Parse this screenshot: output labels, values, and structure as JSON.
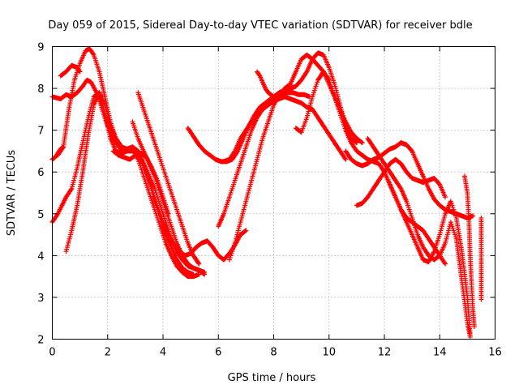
{
  "chart_data": {
    "type": "scatter",
    "title": "Day 059 of 2015, Sidereal Day-to-day VTEC variation (SDTVAR) for receiver bdle",
    "xlabel": "GPS time / hours",
    "ylabel": "SDTVAR / TECUs",
    "xlim": [
      0,
      16
    ],
    "ylim": [
      2,
      9
    ],
    "xticks": [
      "0",
      "2",
      "4",
      "6",
      "8",
      "10",
      "12",
      "14",
      "16"
    ],
    "yticks": [
      "2",
      "3",
      "4",
      "5",
      "6",
      "7",
      "8",
      "9"
    ],
    "grid": true,
    "marker": "plus",
    "color": "#ff0000",
    "series": [
      {
        "x": [
          0.0,
          0.2,
          0.35,
          0.5,
          0.7,
          0.9,
          1.1,
          1.3,
          1.5,
          1.7,
          1.9,
          2.1,
          2.3,
          2.5,
          2.7,
          2.9,
          3.1,
          3.3,
          3.5,
          3.7,
          3.9,
          4.1,
          4.3,
          4.5,
          4.7,
          4.9,
          5.1,
          5.3,
          5.5
        ],
        "y": [
          4.8,
          5.0,
          5.2,
          5.4,
          5.6,
          6.1,
          6.7,
          7.3,
          7.8,
          7.9,
          7.6,
          7.1,
          6.8,
          6.6,
          6.55,
          6.6,
          6.5,
          6.2,
          5.9,
          5.6,
          5.2,
          4.8,
          4.4,
          4.1,
          3.9,
          3.75,
          3.7,
          3.65,
          3.55
        ]
      },
      {
        "x": [
          0.5,
          0.7,
          0.9,
          1.1,
          1.3,
          1.5,
          1.7,
          1.9,
          2.1,
          2.3,
          2.5,
          2.7,
          2.9,
          3.1,
          3.3,
          3.5,
          3.7,
          3.9,
          4.1,
          4.3,
          4.5,
          4.7,
          4.9,
          5.1,
          5.3
        ],
        "y": [
          4.1,
          4.6,
          5.2,
          6.0,
          6.9,
          7.6,
          7.9,
          7.4,
          6.8,
          6.5,
          6.45,
          6.5,
          6.55,
          6.3,
          5.9,
          5.5,
          5.1,
          4.7,
          4.3,
          4.0,
          3.75,
          3.6,
          3.5,
          3.5,
          3.55
        ]
      },
      {
        "x": [
          0.2,
          0.4,
          0.6,
          0.8,
          1.0,
          1.2,
          1.35,
          1.5,
          1.7,
          1.9,
          2.1,
          2.3,
          2.5,
          2.7,
          2.9,
          3.1,
          3.3,
          3.5,
          3.7,
          3.9,
          4.1,
          4.3,
          4.5,
          4.7,
          4.9,
          5.1
        ],
        "y": [
          6.4,
          6.6,
          7.5,
          8.2,
          8.6,
          8.9,
          8.95,
          8.8,
          8.4,
          7.8,
          7.2,
          6.8,
          6.6,
          6.5,
          6.5,
          6.45,
          6.2,
          5.8,
          5.3,
          4.9,
          4.5,
          4.2,
          3.9,
          3.7,
          3.6,
          3.55
        ]
      },
      {
        "x": [
          0.0,
          0.3,
          0.5,
          0.7,
          0.9,
          1.1,
          1.25,
          1.4,
          1.6,
          1.8,
          2.0,
          2.2,
          2.4,
          2.6,
          2.8,
          3.0,
          3.2,
          3.4,
          3.6,
          3.8,
          4.0,
          4.2,
          4.4,
          4.6,
          4.8,
          5.0,
          5.2,
          5.4,
          5.6,
          5.8,
          6.0,
          6.2,
          6.4,
          6.6,
          6.8,
          7.0
        ],
        "y": [
          7.8,
          7.75,
          7.85,
          7.8,
          7.9,
          8.05,
          8.2,
          8.15,
          7.9,
          7.5,
          7.1,
          6.8,
          6.6,
          6.5,
          6.55,
          6.5,
          6.3,
          6.0,
          5.6,
          5.2,
          4.8,
          4.5,
          4.25,
          4.1,
          4.0,
          4.05,
          4.2,
          4.3,
          4.35,
          4.2,
          4.0,
          3.9,
          4.05,
          4.25,
          4.5,
          4.6
        ]
      },
      {
        "x": [
          0.0,
          0.1,
          0.2,
          0.3,
          0.4
        ],
        "y": [
          6.3,
          6.35,
          6.45,
          6.55,
          6.6
        ]
      },
      {
        "x": [
          0.3,
          0.5,
          0.7,
          0.9,
          1.0
        ],
        "y": [
          8.3,
          8.4,
          8.55,
          8.5,
          8.4
        ]
      },
      {
        "x": [
          2.9,
          3.1,
          3.3,
          3.5,
          3.7,
          3.9,
          4.1,
          4.3,
          4.5,
          4.7,
          4.9,
          5.1,
          5.3,
          5.5
        ],
        "y": [
          7.2,
          6.8,
          6.5,
          6.2,
          5.9,
          5.5,
          5.1,
          4.7,
          4.3,
          4.0,
          3.8,
          3.7,
          3.65,
          3.6
        ]
      },
      {
        "x": [
          2.2,
          2.4,
          2.6,
          2.8,
          3.0,
          3.2,
          3.4,
          3.6,
          3.8,
          4.0,
          4.2
        ],
        "y": [
          6.5,
          6.4,
          6.35,
          6.3,
          6.4,
          6.45,
          6.35,
          6.1,
          5.8,
          5.4,
          5.0
        ]
      },
      {
        "x": [
          3.1,
          3.3,
          3.5,
          3.7,
          3.9,
          4.1,
          4.3,
          4.5,
          4.7,
          4.9,
          5.1,
          5.3
        ],
        "y": [
          7.9,
          7.5,
          7.1,
          6.7,
          6.3,
          5.9,
          5.5,
          5.1,
          4.7,
          4.3,
          4.0,
          3.8
        ]
      },
      {
        "x": [
          4.9,
          5.1,
          5.3,
          5.5,
          5.7,
          5.9,
          6.1,
          6.3,
          6.5,
          6.7,
          6.9,
          7.1,
          7.3,
          7.5,
          7.7,
          7.9,
          8.1,
          8.3,
          8.5,
          8.7,
          8.9,
          9.1,
          9.3
        ],
        "y": [
          7.05,
          6.85,
          6.65,
          6.5,
          6.4,
          6.3,
          6.25,
          6.25,
          6.3,
          6.5,
          6.8,
          7.1,
          7.35,
          7.55,
          7.65,
          7.75,
          7.8,
          7.85,
          7.9,
          7.9,
          7.85,
          7.85,
          7.8
        ]
      },
      {
        "x": [
          6.0,
          6.2,
          6.4,
          6.6,
          6.8,
          7.0,
          7.2,
          7.4,
          7.6,
          7.8,
          8.0,
          8.2,
          8.4,
          8.6,
          8.8,
          9.0,
          9.2,
          9.4,
          9.6,
          9.8,
          10.0,
          10.2,
          10.4,
          10.6
        ],
        "y": [
          4.7,
          5.0,
          5.4,
          5.8,
          6.2,
          6.6,
          7.0,
          7.3,
          7.5,
          7.6,
          7.7,
          7.75,
          7.8,
          7.75,
          7.7,
          7.65,
          7.55,
          7.5,
          7.3,
          7.1,
          6.9,
          6.7,
          6.5,
          6.3
        ]
      },
      {
        "x": [
          6.4,
          6.6,
          6.8,
          7.0,
          7.2,
          7.4,
          7.6,
          7.8,
          8.0,
          8.2,
          8.4,
          8.6,
          8.8,
          9.0,
          9.2,
          9.4,
          9.6,
          9.8,
          10.0,
          10.2,
          10.4,
          10.6,
          10.8,
          11.0,
          11.2
        ],
        "y": [
          3.9,
          4.3,
          4.8,
          5.3,
          5.8,
          6.3,
          6.8,
          7.2,
          7.6,
          7.85,
          8.0,
          8.1,
          8.4,
          8.7,
          8.8,
          8.7,
          8.55,
          8.4,
          8.1,
          7.8,
          7.5,
          7.2,
          6.95,
          6.8,
          6.7
        ]
      },
      {
        "x": [
          6.2,
          6.4,
          6.6,
          6.8,
          7.0,
          7.2,
          7.4,
          7.6,
          7.8,
          8.0,
          8.2,
          8.4,
          8.6,
          8.8,
          9.0,
          9.2,
          9.4,
          9.6,
          9.8,
          10.0,
          10.2,
          10.4,
          10.6,
          10.8,
          11.0
        ],
        "y": [
          6.25,
          6.3,
          6.5,
          6.8,
          7.0,
          7.2,
          7.4,
          7.55,
          7.7,
          7.8,
          7.9,
          7.95,
          8.0,
          8.05,
          8.2,
          8.4,
          8.7,
          8.85,
          8.8,
          8.5,
          8.1,
          7.6,
          7.1,
          6.8,
          6.7
        ]
      },
      {
        "x": [
          7.4,
          7.5,
          7.6,
          7.7,
          7.8,
          7.9,
          8.0
        ],
        "y": [
          8.4,
          8.3,
          8.15,
          8.0,
          7.9,
          7.85,
          7.8
        ]
      },
      {
        "x": [
          8.8,
          9.0,
          9.2,
          9.4,
          9.6,
          9.8,
          10.0,
          10.2,
          10.4,
          10.6,
          10.8,
          11.0,
          11.2,
          11.4,
          11.6,
          11.8,
          12.0,
          12.2,
          12.4,
          12.6,
          12.8,
          13.0,
          13.2,
          13.4,
          13.6,
          13.8,
          14.0,
          14.2
        ],
        "y": [
          7.05,
          6.95,
          7.3,
          7.8,
          8.2,
          8.4,
          8.2,
          7.8,
          7.4,
          7.0,
          6.7,
          6.5,
          6.4,
          6.3,
          6.25,
          6.2,
          6.0,
          5.7,
          5.4,
          5.1,
          4.9,
          4.8,
          4.7,
          4.6,
          4.4,
          4.2,
          4.0,
          3.8
        ]
      },
      {
        "x": [
          10.6,
          10.8,
          11.0,
          11.2,
          11.4,
          11.6,
          11.8,
          12.0,
          12.2,
          12.4,
          12.6,
          12.8,
          13.0,
          13.2,
          13.4,
          13.6,
          13.8,
          14.0,
          14.2,
          14.4,
          14.6,
          14.8,
          15.0,
          15.2
        ],
        "y": [
          6.5,
          6.3,
          6.2,
          6.15,
          6.2,
          6.3,
          6.35,
          6.45,
          6.55,
          6.6,
          6.7,
          6.65,
          6.5,
          6.2,
          5.9,
          5.6,
          5.35,
          5.2,
          5.1,
          5.05,
          5.0,
          4.95,
          4.9,
          4.95
        ]
      },
      {
        "x": [
          11.0,
          11.2,
          11.4,
          11.6,
          11.8,
          12.0,
          12.2,
          12.4,
          12.6,
          12.8,
          13.0,
          13.2,
          13.4,
          13.6,
          13.8,
          14.0,
          14.2
        ],
        "y": [
          5.2,
          5.25,
          5.4,
          5.6,
          5.8,
          6.0,
          6.2,
          6.3,
          6.2,
          6.0,
          5.85,
          5.8,
          5.75,
          5.8,
          5.85,
          5.7,
          5.4
        ]
      },
      {
        "x": [
          11.4,
          11.6,
          11.8,
          12.0,
          12.2,
          12.4,
          12.6,
          12.8,
          13.0,
          13.2,
          13.4,
          13.6,
          13.8,
          14.0,
          14.2,
          14.4,
          14.6,
          14.8,
          15.0,
          15.1
        ],
        "y": [
          6.8,
          6.6,
          6.4,
          6.2,
          6.0,
          5.8,
          5.6,
          5.3,
          4.9,
          4.5,
          4.2,
          4.0,
          3.9,
          4.0,
          4.3,
          4.8,
          4.4,
          3.4,
          2.4,
          2.05
        ]
      },
      {
        "x": [
          12.0,
          12.2,
          12.4,
          12.6,
          12.8,
          13.0,
          13.2,
          13.4,
          13.6,
          13.8,
          14.0,
          14.2,
          14.4,
          14.6,
          14.8,
          15.0,
          15.1
        ],
        "y": [
          6.0,
          5.7,
          5.4,
          5.1,
          4.8,
          4.5,
          4.2,
          3.9,
          3.85,
          4.1,
          4.5,
          5.0,
          5.3,
          4.9,
          4.1,
          3.0,
          2.1
        ]
      },
      {
        "x": [
          14.9,
          15.0,
          15.05,
          15.1,
          15.15,
          15.2,
          15.25
        ],
        "y": [
          5.9,
          5.5,
          4.9,
          4.0,
          3.3,
          2.7,
          2.3
        ]
      },
      {
        "x": [
          15.5,
          15.5,
          15.5,
          15.5,
          15.5
        ],
        "y": [
          4.9,
          4.45,
          3.85,
          3.05,
          2.95
        ]
      }
    ]
  }
}
